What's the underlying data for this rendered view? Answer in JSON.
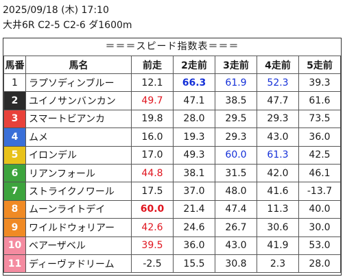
{
  "header": {
    "line1": "2025/09/18 (木) 17:10",
    "line2": "大井6R C2-5 C2-6 ダ1600m"
  },
  "table_title": "＝＝＝スピード指数表＝＝＝",
  "columns": [
    "馬番",
    "馬名",
    "前走",
    "2走前",
    "3走前",
    "4走前",
    "5走前"
  ],
  "colors": {
    "frame": [
      "#ffffff",
      "#2b2b2b",
      "#e8413a",
      "#3a6fd8",
      "#e8c21a",
      "#3da43d",
      "#3da43d",
      "#f08a24",
      "#f08a24",
      "#f48ba0",
      "#f48ba0"
    ],
    "frame_text": [
      "#1a1a1a",
      "#ffffff",
      "#ffffff",
      "#ffffff",
      "#ffffff",
      "#ffffff",
      "#ffffff",
      "#ffffff",
      "#ffffff",
      "#ffffff",
      "#ffffff"
    ],
    "highlight_red": "#e0141e",
    "highlight_blue": "#1430d8"
  },
  "rows": [
    {
      "no": "1",
      "name": "ラプソディンブルー",
      "v": [
        "12.1",
        "66.3",
        "61.9",
        "52.3",
        "39.3"
      ],
      "style": [
        "",
        "blue bold",
        "blue",
        "blue",
        ""
      ]
    },
    {
      "no": "2",
      "name": "ユイノサンバンカン",
      "v": [
        "49.7",
        "47.1",
        "38.5",
        "47.7",
        "61.6"
      ],
      "style": [
        "red",
        "",
        "",
        "",
        ""
      ]
    },
    {
      "no": "3",
      "name": "スマートビアンカ",
      "v": [
        "19.8",
        "28.0",
        "29.5",
        "29.3",
        "73.5"
      ],
      "style": [
        "",
        "",
        "",
        "",
        ""
      ]
    },
    {
      "no": "4",
      "name": "ムメ",
      "v": [
        "16.0",
        "19.3",
        "29.3",
        "43.0",
        "36.0"
      ],
      "style": [
        "",
        "",
        "",
        "",
        ""
      ]
    },
    {
      "no": "5",
      "name": "イロンデル",
      "v": [
        "17.0",
        "49.3",
        "60.0",
        "61.3",
        "42.5"
      ],
      "style": [
        "",
        "",
        "blue",
        "blue",
        ""
      ]
    },
    {
      "no": "6",
      "name": "リアンフォール",
      "v": [
        "44.8",
        "38.1",
        "31.5",
        "42.0",
        "46.1"
      ],
      "style": [
        "red",
        "",
        "",
        "",
        ""
      ]
    },
    {
      "no": "7",
      "name": "ストライクノワール",
      "v": [
        "17.5",
        "37.0",
        "48.0",
        "41.6",
        "-13.7"
      ],
      "style": [
        "",
        "",
        "",
        "",
        ""
      ]
    },
    {
      "no": "8",
      "name": "ムーンライトデイ",
      "v": [
        "60.0",
        "21.4",
        "47.4",
        "11.3",
        "40.0"
      ],
      "style": [
        "red bold",
        "",
        "",
        "",
        ""
      ]
    },
    {
      "no": "9",
      "name": "ワイルドウォリアー",
      "v": [
        "42.6",
        "24.6",
        "26.7",
        "30.6",
        "30.0"
      ],
      "style": [
        "red",
        "",
        "",
        "",
        ""
      ]
    },
    {
      "no": "10",
      "name": "ベアーザベル",
      "v": [
        "39.5",
        "36.0",
        "43.0",
        "41.9",
        "53.0"
      ],
      "style": [
        "red",
        "",
        "",
        "",
        ""
      ]
    },
    {
      "no": "11",
      "name": "ディーヴァドリーム",
      "v": [
        "-2.5",
        "15.5",
        "30.8",
        "2.3",
        "28.0"
      ],
      "style": [
        "",
        "",
        "",
        "",
        ""
      ]
    }
  ]
}
